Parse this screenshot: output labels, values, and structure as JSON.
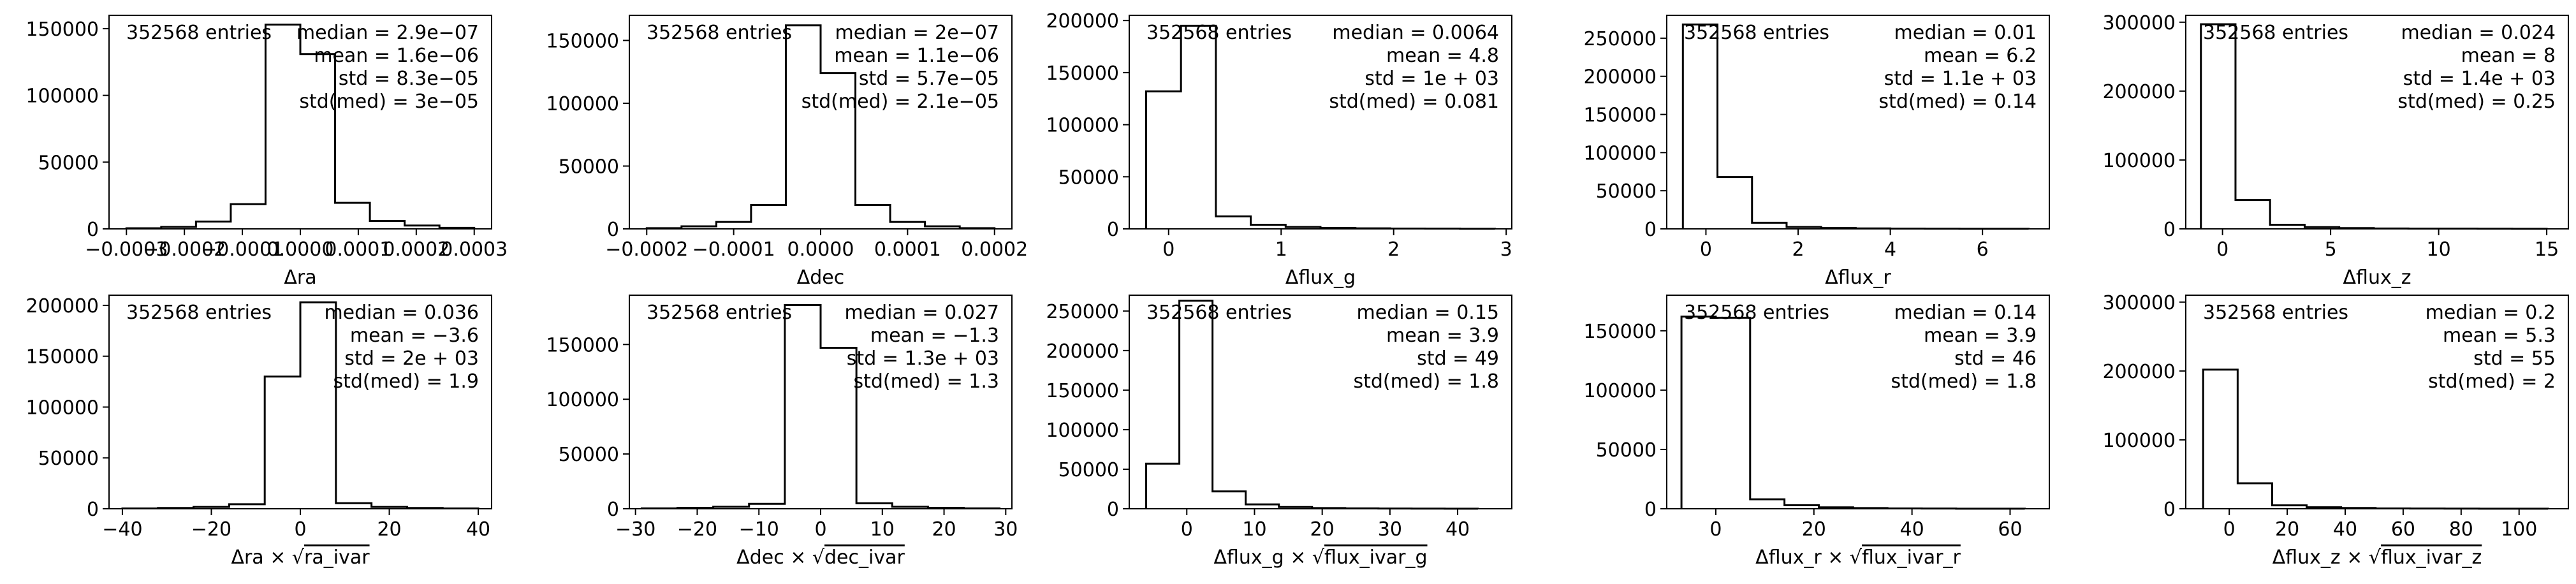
{
  "chart_data": [
    {
      "type": "histogram",
      "row": 0,
      "col": 0,
      "xlabel": "Δra",
      "entries_text": "352568 entries",
      "stats": [
        "median = 2.9e−07",
        "mean = 1.6e−06",
        "std = 8.3e−05",
        "std(med) = 3e−05"
      ],
      "xlim": [
        -0.00033,
        0.00033
      ],
      "ylim": [
        0,
        160000
      ],
      "xticks": [
        -0.0003,
        -0.0002,
        -0.0001,
        0.0,
        0.0001,
        0.0002,
        0.0003
      ],
      "xtick_labels": [
        "−0.0003",
        "−0.0002",
        "−0.0001",
        "0.0000",
        "0.0001",
        "0.0002",
        "0.0003"
      ],
      "yticks": [
        0,
        50000,
        100000,
        150000
      ],
      "ytick_labels": [
        "0",
        "50000",
        "100000",
        "150000"
      ],
      "bin_edges": [
        -0.0003,
        -0.00024,
        -0.00018,
        -0.00012,
        -6e-05,
        0.0,
        6e-05,
        0.00012,
        0.00018,
        0.00024,
        0.0003
      ],
      "counts": [
        500,
        1500,
        5500,
        18500,
        153000,
        131000,
        19500,
        6000,
        2500,
        800
      ]
    },
    {
      "type": "histogram",
      "row": 0,
      "col": 1,
      "xlabel": "Δdec",
      "entries_text": "352568 entries",
      "stats": [
        "median = 2e−07",
        "mean = 1.1e−06",
        "std = 5.7e−05",
        "std(med) = 2.1e−05"
      ],
      "xlim": [
        -0.00022,
        0.00022
      ],
      "ylim": [
        0,
        170000
      ],
      "xticks": [
        -0.0002,
        -0.0001,
        0.0,
        0.0001,
        0.0002
      ],
      "xtick_labels": [
        "−0.0002",
        "−0.0001",
        "0.0000",
        "0.0001",
        "0.0002"
      ],
      "yticks": [
        0,
        50000,
        100000,
        150000
      ],
      "ytick_labels": [
        "0",
        "50000",
        "100000",
        "150000"
      ],
      "bin_edges": [
        -0.0002,
        -0.00016,
        -0.00012,
        -8e-05,
        -4e-05,
        0.0,
        4e-05,
        8e-05,
        0.00012,
        0.00016,
        0.0002
      ],
      "counts": [
        600,
        2000,
        5500,
        19000,
        162000,
        124000,
        19000,
        5500,
        2000,
        600
      ]
    },
    {
      "type": "histogram",
      "row": 0,
      "col": 2,
      "xlabel": "Δflux_g",
      "entries_text": "352568 entries",
      "stats": [
        "median = 0.0064",
        "mean = 4.8",
        "std = 1e + 03",
        "std(med) = 0.081"
      ],
      "xlim": [
        -0.35,
        3.05
      ],
      "ylim": [
        0,
        205000
      ],
      "xticks": [
        0,
        1,
        2,
        3
      ],
      "xtick_labels": [
        "0",
        "1",
        "2",
        "3"
      ],
      "yticks": [
        0,
        50000,
        100000,
        150000,
        200000
      ],
      "ytick_labels": [
        "0",
        "50000",
        "100000",
        "150000",
        "200000"
      ],
      "bin_edges": [
        -0.2,
        0.11,
        0.42,
        0.73,
        1.04,
        1.35,
        1.66,
        1.97,
        2.28,
        2.59,
        2.9
      ],
      "counts": [
        132000,
        195000,
        12000,
        4000,
        1800,
        900,
        500,
        300,
        200,
        100
      ]
    },
    {
      "type": "histogram",
      "row": 0,
      "col": 3,
      "xlabel": "Δflux_r",
      "entries_text": "352568 entries",
      "stats": [
        "median = 0.01",
        "mean = 6.2",
        "std = 1.1e + 03",
        "std(med) = 0.14"
      ],
      "xlim": [
        -0.85,
        7.45
      ],
      "ylim": [
        0,
        280000
      ],
      "xticks": [
        0,
        2,
        4,
        6
      ],
      "xtick_labels": [
        "0",
        "2",
        "4",
        "6"
      ],
      "yticks": [
        0,
        50000,
        100000,
        150000,
        200000,
        250000
      ],
      "ytick_labels": [
        "0",
        "50000",
        "100000",
        "150000",
        "200000",
        "250000"
      ],
      "bin_edges": [
        -0.5,
        0.25,
        1.0,
        1.75,
        2.5,
        3.25,
        4.0,
        4.75,
        5.5,
        6.25,
        7.0
      ],
      "counts": [
        268000,
        68000,
        8000,
        2500,
        1200,
        600,
        300,
        200,
        100,
        100
      ]
    },
    {
      "type": "histogram",
      "row": 0,
      "col": 4,
      "xlabel": "Δflux_z",
      "entries_text": "352568 entries",
      "stats": [
        "median = 0.024",
        "mean = 8",
        "std = 1.4e + 03",
        "std(med) = 0.25"
      ],
      "xlim": [
        -1.7,
        16.0
      ],
      "ylim": [
        0,
        310000
      ],
      "xticks": [
        0,
        5,
        10,
        15
      ],
      "xtick_labels": [
        "0",
        "5",
        "10",
        "15"
      ],
      "yticks": [
        0,
        100000,
        200000,
        300000
      ],
      "ytick_labels": [
        "0",
        "100000",
        "200000",
        "300000"
      ],
      "bin_edges": [
        -1.0,
        0.6,
        2.2,
        3.8,
        5.4,
        7.0,
        8.6,
        10.2,
        11.8,
        13.4,
        15.0
      ],
      "counts": [
        297000,
        42000,
        6000,
        2500,
        1200,
        600,
        400,
        300,
        200,
        100
      ]
    },
    {
      "type": "histogram",
      "row": 1,
      "col": 0,
      "xlabel": "Δra × √ra_ivar",
      "entries_text": "352568 entries",
      "stats": [
        "median = 0.036",
        "mean = −3.6",
        "std = 2e + 03",
        "std(med) = 1.9"
      ],
      "xlim": [
        -43,
        43
      ],
      "ylim": [
        0,
        210000
      ],
      "xticks": [
        -40,
        -20,
        0,
        20,
        40
      ],
      "xtick_labels": [
        "−40",
        "−20",
        "0",
        "20",
        "40"
      ],
      "yticks": [
        0,
        50000,
        100000,
        150000,
        200000
      ],
      "ytick_labels": [
        "0",
        "50000",
        "100000",
        "150000",
        "200000"
      ],
      "bin_edges": [
        -40,
        -32,
        -24,
        -16,
        -8,
        0,
        8,
        16,
        24,
        32,
        40
      ],
      "counts": [
        300,
        800,
        1800,
        4500,
        130000,
        203000,
        5500,
        1800,
        800,
        300
      ]
    },
    {
      "type": "histogram",
      "row": 1,
      "col": 1,
      "xlabel": "Δdec × √dec_ivar",
      "entries_text": "352568 entries",
      "stats": [
        "median = 0.027",
        "mean = −1.3",
        "std = 1.3e + 03",
        "std(med) = 1.3"
      ],
      "xlim": [
        -31,
        31
      ],
      "ylim": [
        0,
        195000
      ],
      "xticks": [
        -30,
        -20,
        -10,
        0,
        10,
        20,
        30
      ],
      "xtick_labels": [
        "−30",
        "−20",
        "−10",
        "0",
        "10",
        "20",
        "30"
      ],
      "yticks": [
        0,
        50000,
        100000,
        150000
      ],
      "ytick_labels": [
        "0",
        "50000",
        "100000",
        "150000"
      ],
      "bin_edges": [
        -29,
        -23.2,
        -17.4,
        -11.6,
        -5.8,
        0,
        5.8,
        11.6,
        17.4,
        23.2,
        29
      ],
      "counts": [
        400,
        900,
        1800,
        4500,
        186000,
        147000,
        5000,
        1800,
        900,
        400
      ]
    },
    {
      "type": "histogram",
      "row": 1,
      "col": 2,
      "xlabel": "Δflux_g × √flux_ivar_g",
      "entries_text": "352568 entries",
      "stats": [
        "median = 0.15",
        "mean = 3.9",
        "std = 49",
        "std(med) = 1.8"
      ],
      "xlim": [
        -8.5,
        48
      ],
      "ylim": [
        0,
        270000
      ],
      "xticks": [
        0,
        10,
        20,
        30,
        40
      ],
      "xtick_labels": [
        "0",
        "10",
        "20",
        "30",
        "40"
      ],
      "yticks": [
        0,
        50000,
        100000,
        150000,
        200000,
        250000
      ],
      "ytick_labels": [
        "0",
        "50000",
        "100000",
        "150000",
        "200000",
        "250000"
      ],
      "bin_edges": [
        -6,
        -1.1,
        3.8,
        8.7,
        13.6,
        18.5,
        23.4,
        28.3,
        33.2,
        38.1,
        43.0
      ],
      "counts": [
        57000,
        263000,
        22000,
        5500,
        2200,
        900,
        500,
        300,
        200,
        100
      ]
    },
    {
      "type": "histogram",
      "row": 1,
      "col": 3,
      "xlabel": "Δflux_r × √flux_ivar_r",
      "entries_text": "352568 entries",
      "stats": [
        "median = 0.14",
        "mean = 3.9",
        "std = 46",
        "std(med) = 1.8"
      ],
      "xlim": [
        -10,
        68
      ],
      "ylim": [
        0,
        180000
      ],
      "xticks": [
        0,
        20,
        40,
        60
      ],
      "xtick_labels": [
        "0",
        "20",
        "40",
        "60"
      ],
      "yticks": [
        0,
        50000,
        100000,
        150000
      ],
      "ytick_labels": [
        "0",
        "50000",
        "100000",
        "150000"
      ],
      "bin_edges": [
        -7,
        0,
        7,
        14,
        21,
        28,
        35,
        42,
        49,
        56,
        63
      ],
      "counts": [
        162000,
        161000,
        8000,
        3000,
        1200,
        600,
        300,
        200,
        100,
        100
      ]
    },
    {
      "type": "histogram",
      "row": 1,
      "col": 4,
      "xlabel": "Δflux_z × √flux_ivar_z",
      "entries_text": "352568 entries",
      "stats": [
        "median = 0.2",
        "mean = 5.3",
        "std = 55",
        "std(med) = 2"
      ],
      "xlim": [
        -15,
        117
      ],
      "ylim": [
        0,
        310000
      ],
      "xticks": [
        0,
        20,
        40,
        60,
        80,
        100
      ],
      "xtick_labels": [
        "0",
        "20",
        "40",
        "60",
        "80",
        "100"
      ],
      "yticks": [
        0,
        100000,
        200000,
        300000
      ],
      "ytick_labels": [
        "0",
        "100000",
        "200000",
        "300000"
      ],
      "bin_edges": [
        -9,
        2.9,
        14.8,
        26.7,
        38.6,
        50.5,
        62.4,
        74.3,
        86.2,
        98.1,
        110.0
      ],
      "counts": [
        202000,
        37000,
        5000,
        2200,
        1100,
        500,
        300,
        200,
        100,
        100
      ]
    }
  ]
}
